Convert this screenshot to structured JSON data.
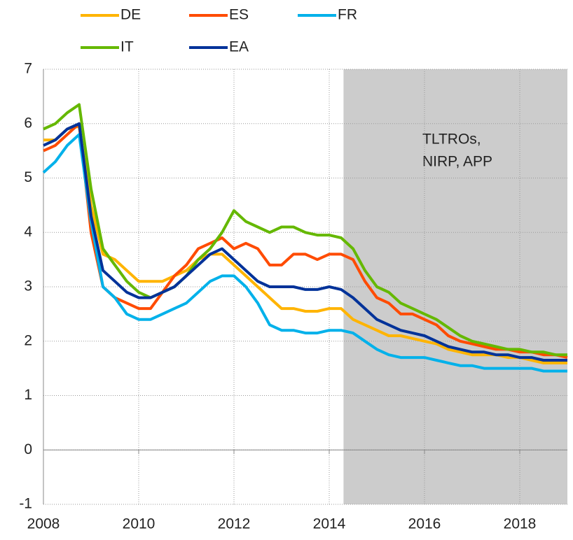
{
  "chart_data": {
    "type": "line",
    "x": [
      2008,
      2008.25,
      2008.5,
      2008.75,
      2009,
      2009.25,
      2009.5,
      2009.75,
      2010,
      2010.25,
      2010.5,
      2010.75,
      2011,
      2011.25,
      2011.5,
      2011.75,
      2012,
      2012.25,
      2012.5,
      2012.75,
      2013,
      2013.25,
      2013.5,
      2013.75,
      2014,
      2014.25,
      2014.5,
      2014.75,
      2015,
      2015.25,
      2015.5,
      2015.75,
      2016,
      2016.25,
      2016.5,
      2016.75,
      2017,
      2017.25,
      2017.5,
      2017.75,
      2018,
      2018.25,
      2018.5,
      2018.75,
      2019
    ],
    "series": [
      {
        "name": "DE",
        "color": "#ffb400",
        "values": [
          5.7,
          5.7,
          5.9,
          5.95,
          4.5,
          3.6,
          3.5,
          3.3,
          3.1,
          3.1,
          3.1,
          3.2,
          3.3,
          3.5,
          3.6,
          3.6,
          3.4,
          3.2,
          3.0,
          2.8,
          2.6,
          2.6,
          2.55,
          2.55,
          2.6,
          2.6,
          2.4,
          2.3,
          2.2,
          2.1,
          2.1,
          2.05,
          2.0,
          1.95,
          1.85,
          1.8,
          1.75,
          1.75,
          1.75,
          1.7,
          1.7,
          1.65,
          1.6,
          1.6,
          1.6
        ]
      },
      {
        "name": "ES",
        "color": "#ff4b00",
        "values": [
          5.5,
          5.6,
          5.8,
          6.0,
          4.0,
          3.0,
          2.8,
          2.7,
          2.6,
          2.6,
          2.9,
          3.2,
          3.4,
          3.7,
          3.8,
          3.9,
          3.7,
          3.8,
          3.7,
          3.4,
          3.4,
          3.6,
          3.6,
          3.5,
          3.6,
          3.6,
          3.5,
          3.1,
          2.8,
          2.7,
          2.5,
          2.5,
          2.4,
          2.3,
          2.1,
          2.0,
          1.95,
          1.9,
          1.85,
          1.85,
          1.8,
          1.8,
          1.75,
          1.75,
          1.7
        ]
      },
      {
        "name": "FR",
        "color": "#00b1ea",
        "values": [
          5.1,
          5.3,
          5.6,
          5.8,
          4.2,
          3.0,
          2.8,
          2.5,
          2.4,
          2.4,
          2.5,
          2.6,
          2.7,
          2.9,
          3.1,
          3.2,
          3.2,
          3.0,
          2.7,
          2.3,
          2.2,
          2.2,
          2.15,
          2.15,
          2.2,
          2.2,
          2.15,
          2.0,
          1.85,
          1.75,
          1.7,
          1.7,
          1.7,
          1.65,
          1.6,
          1.55,
          1.55,
          1.5,
          1.5,
          1.5,
          1.5,
          1.5,
          1.45,
          1.45,
          1.45
        ]
      },
      {
        "name": "IT",
        "color": "#65b800",
        "values": [
          5.9,
          6.0,
          6.2,
          6.35,
          4.8,
          3.7,
          3.4,
          3.1,
          2.9,
          2.8,
          2.9,
          3.0,
          3.2,
          3.5,
          3.7,
          4.0,
          4.4,
          4.2,
          4.1,
          4.0,
          4.1,
          4.1,
          4.0,
          3.95,
          3.95,
          3.9,
          3.7,
          3.3,
          3.0,
          2.9,
          2.7,
          2.6,
          2.5,
          2.4,
          2.25,
          2.1,
          2.0,
          1.95,
          1.9,
          1.85,
          1.85,
          1.8,
          1.8,
          1.75,
          1.75
        ]
      },
      {
        "name": "EA",
        "color": "#003299",
        "values": [
          5.6,
          5.7,
          5.9,
          6.0,
          4.3,
          3.3,
          3.1,
          2.9,
          2.8,
          2.8,
          2.9,
          3.0,
          3.2,
          3.4,
          3.6,
          3.7,
          3.5,
          3.3,
          3.1,
          3.0,
          3.0,
          3.0,
          2.95,
          2.95,
          3.0,
          2.95,
          2.8,
          2.6,
          2.4,
          2.3,
          2.2,
          2.15,
          2.1,
          2.0,
          1.9,
          1.85,
          1.8,
          1.8,
          1.75,
          1.75,
          1.7,
          1.7,
          1.65,
          1.65,
          1.65
        ]
      }
    ],
    "xlim": [
      2008,
      2019
    ],
    "xticks": [
      2008,
      2010,
      2012,
      2014,
      2016,
      2018
    ],
    "ylim": [
      -1,
      7
    ],
    "yticks": [
      -1,
      0,
      1,
      2,
      3,
      4,
      5,
      6,
      7
    ],
    "grid": true,
    "legend_position": "top",
    "shaded_region": {
      "x": [
        2014.3,
        2019
      ],
      "color": "#cccccc",
      "label": [
        "TLTROs,",
        "NIRP, APP"
      ]
    }
  }
}
